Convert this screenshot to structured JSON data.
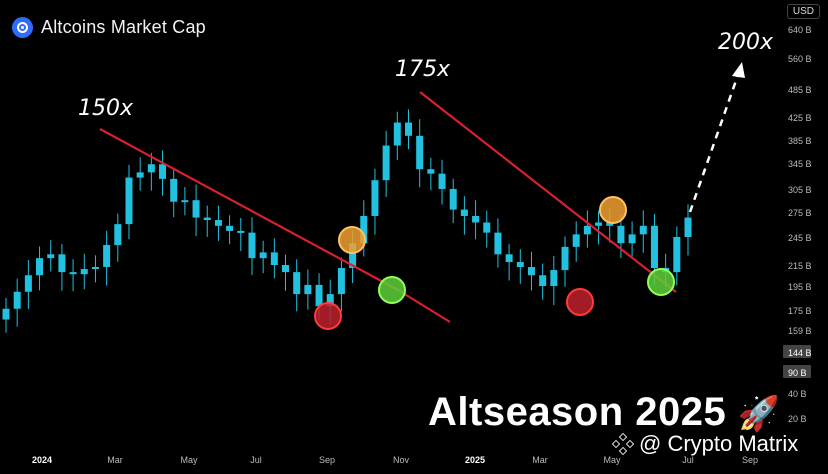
{
  "header": {
    "title": "Altcoins Market Cap",
    "currency": "USD",
    "logo_icon": "coinmarketcap-logo-icon"
  },
  "annotations": {
    "m150": "150x",
    "m175": "175x",
    "m200": "200x",
    "headline": "Altseason 2025",
    "rocket": "🚀",
    "watermark": "@ Crypto Matrix",
    "watermark_icon": "binance-logo-icon"
  },
  "colors": {
    "background": "#000000",
    "candle": "#22c1e0",
    "trendline": "#d8202f",
    "marker_red": "#c0202a",
    "marker_orange": "#f0a030",
    "marker_green": "#5fd03a",
    "arrow": "#ffffff",
    "axis_text": "#bbbbbb"
  },
  "chart_data": {
    "type": "candlestick",
    "title": "Altcoins Market Cap",
    "unit": "USD",
    "y_scale": "log",
    "y_ticks": [
      "640 B",
      "560 B",
      "485 B",
      "425 B",
      "385 B",
      "345 B",
      "305 B",
      "275 B",
      "245 B",
      "215 B",
      "195 B",
      "175 B",
      "159 B",
      "144 B",
      "90 B",
      "40 B",
      "20 B"
    ],
    "y_tick_values": [
      640,
      560,
      485,
      425,
      385,
      345,
      305,
      275,
      245,
      215,
      195,
      175,
      159,
      144,
      90,
      40,
      20
    ],
    "highlighted_y_ticks": [
      "144 B",
      "90 B"
    ],
    "x_ticks": [
      "2024",
      "Mar",
      "May",
      "Jul",
      "Sep",
      "Nov",
      "2025",
      "Mar",
      "May",
      "Jul",
      "Sep"
    ],
    "x_ticks_bold": [
      "2024",
      "2025"
    ],
    "candles_close_approx_B": [
      176,
      190,
      205,
      222,
      226,
      208,
      206,
      211,
      213,
      236,
      260,
      322,
      330,
      343,
      320,
      288,
      290,
      268,
      265,
      258,
      252,
      250,
      222,
      228,
      215,
      208,
      188,
      196,
      178,
      188,
      212,
      238,
      270,
      318,
      375,
      415,
      392,
      335,
      328,
      305,
      278,
      270,
      262,
      250,
      226,
      218,
      213,
      205,
      195,
      210,
      234,
      248,
      258,
      262,
      258,
      238,
      248,
      258,
      212,
      208,
      245,
      268
    ],
    "trendlines": [
      {
        "from": [
          "2024-03",
          400
        ],
        "to": [
          "2024-11",
          165
        ],
        "color": "red"
      },
      {
        "from": [
          "2024-12",
          495
        ],
        "to": [
          "2025-06",
          190
        ],
        "color": "red"
      }
    ],
    "markers": [
      {
        "color": "red",
        "date": "2024-09",
        "value": 170
      },
      {
        "color": "orange",
        "date": "2024-10",
        "value": 244
      },
      {
        "color": "green",
        "date": "2024-11",
        "value": 193
      },
      {
        "color": "red",
        "date": "2025-04",
        "value": 178
      },
      {
        "color": "orange",
        "date": "2025-05",
        "value": 275
      },
      {
        "color": "green",
        "date": "2025-06",
        "value": 197
      }
    ],
    "labels": [
      {
        "text": "150x",
        "near": "2024-03 peak"
      },
      {
        "text": "175x",
        "near": "2024-12 peak"
      },
      {
        "text": "200x",
        "near": "projection"
      }
    ],
    "projection": {
      "style": "dashed-arrow",
      "direction": "up"
    }
  }
}
